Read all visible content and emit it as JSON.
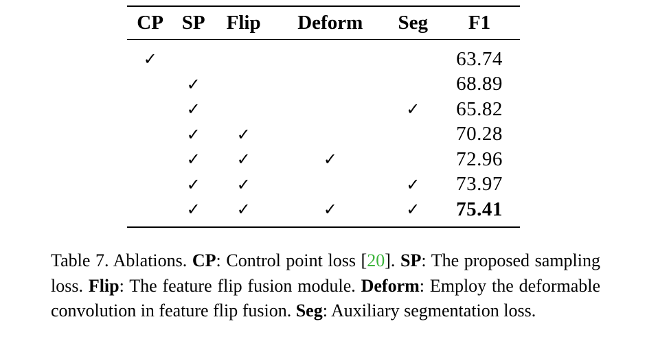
{
  "table": {
    "headers": [
      "CP",
      "SP",
      "Flip",
      "Deform",
      "Seg",
      "F1"
    ],
    "check_symbol": "✓",
    "rows": [
      {
        "cp": "✓",
        "sp": "",
        "flip": "",
        "deform": "",
        "seg": "",
        "f1": "63.74"
      },
      {
        "cp": "",
        "sp": "✓",
        "flip": "",
        "deform": "",
        "seg": "",
        "f1": "68.89"
      },
      {
        "cp": "",
        "sp": "✓",
        "flip": "",
        "deform": "",
        "seg": "✓",
        "f1": "65.82"
      },
      {
        "cp": "",
        "sp": "✓",
        "flip": "✓",
        "deform": "",
        "seg": "",
        "f1": "70.28"
      },
      {
        "cp": "",
        "sp": "✓",
        "flip": "✓",
        "deform": "✓",
        "seg": "",
        "f1": "72.96"
      },
      {
        "cp": "",
        "sp": "✓",
        "flip": "✓",
        "deform": "",
        "seg": "✓",
        "f1": "73.97"
      },
      {
        "cp": "",
        "sp": "✓",
        "flip": "✓",
        "deform": "✓",
        "seg": "✓",
        "f1": "75.41"
      }
    ],
    "best_row_index": 6
  },
  "caption": {
    "prefix": "Table 7. Ablations. ",
    "cp_term": "CP",
    "cp_text": ": Control point loss [",
    "cp_cite": "20",
    "cp_text_end": "]. ",
    "sp_term": "SP",
    "sp_text": ": The proposed sampling loss. ",
    "flip_term": "Flip",
    "flip_text": ": The feature flip fusion module. ",
    "deform_term": "Deform",
    "deform_text": ": Employ the deformable convolution in feature flip fusion. ",
    "seg_term": "Seg",
    "seg_text": ": Auxiliary segmentation loss.",
    "cite_color": "#3cb43c"
  }
}
